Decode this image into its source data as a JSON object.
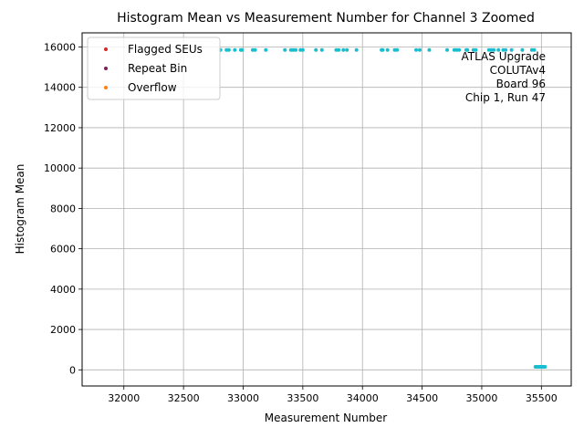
{
  "chart_data": {
    "type": "scatter",
    "title": "Histogram Mean vs Measurement Number for Channel 3 Zoomed",
    "xlabel": "Measurement Number",
    "ylabel": "Histogram Mean",
    "xlim": [
      31650,
      35750
    ],
    "ylim": [
      -800,
      16700
    ],
    "xticks": [
      32000,
      32500,
      33000,
      33500,
      34000,
      34500,
      35000,
      35500
    ],
    "yticks": [
      0,
      2000,
      4000,
      6000,
      8000,
      10000,
      12000,
      14000,
      16000
    ],
    "grid": true,
    "legend_position": "top-left",
    "legend": [
      {
        "label": "Flagged SEUs",
        "color": "#d62728"
      },
      {
        "label": "Repeat Bin",
        "color": "#7b1f5f"
      },
      {
        "label": "Overflow",
        "color": "#ff7f0e"
      }
    ],
    "annotation": [
      "ATLAS Upgrade",
      "COLUTAv4",
      "Board 96",
      "Chip 1, Run 47"
    ],
    "series": [
      {
        "color": "#17becf",
        "x": [
          32810,
          32860,
          32880,
          32930,
          32980,
          32990,
          33080,
          33100,
          33190,
          33350,
          33400,
          33420,
          33440,
          33480,
          33500,
          33610,
          33660,
          33780,
          33800,
          33840,
          33870,
          33950,
          34160,
          34170,
          34210,
          34270,
          34290,
          34450,
          34480,
          34560,
          34710,
          34770,
          34790,
          34810,
          34870,
          34880,
          34930,
          34950,
          35060,
          35080,
          35100,
          35140,
          35180,
          35200,
          35250,
          35340,
          35420,
          35440
        ],
        "y": [
          15850,
          15850,
          15850,
          15850,
          15850,
          15850,
          15850,
          15850,
          15850,
          15850,
          15850,
          15850,
          15850,
          15850,
          15850,
          15850,
          15850,
          15850,
          15850,
          15850,
          15850,
          15850,
          15850,
          15850,
          15850,
          15850,
          15850,
          15850,
          15850,
          15850,
          15850,
          15850,
          15850,
          15850,
          15850,
          15850,
          15850,
          15850,
          15850,
          15850,
          15850,
          15850,
          15850,
          15850,
          15850,
          15850,
          15850,
          15850
        ]
      },
      {
        "color": "#17becf",
        "x": [
          35450,
          35460,
          35470,
          35480,
          35490,
          35500,
          35510,
          35520,
          35530
        ],
        "y": [
          150,
          150,
          150,
          150,
          150,
          150,
          150,
          150,
          150
        ]
      }
    ]
  }
}
